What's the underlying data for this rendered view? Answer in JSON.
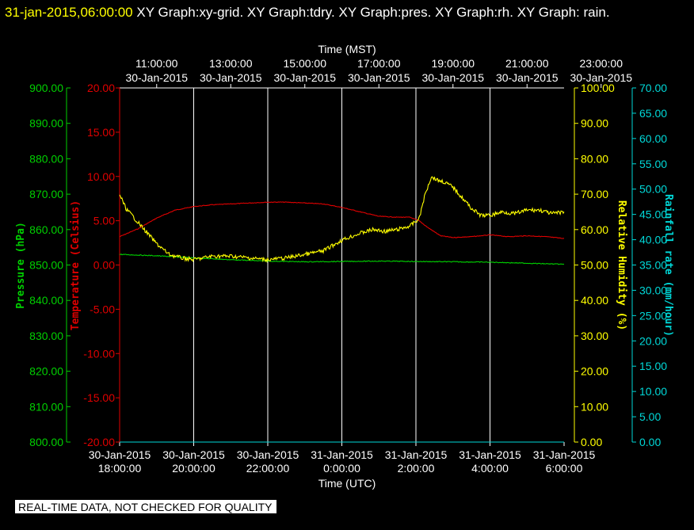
{
  "header": {
    "timestamp": "31-jan-2015,06:00:00",
    "graphs": "XY Graph:xy-grid.  XY Graph:tdry.  XY Graph:pres.  XY Graph:rh.  XY Graph: rain."
  },
  "quality_note": "REAL-TIME DATA, NOT CHECKED FOR QUALITY",
  "chart_data": {
    "type": "line",
    "grid": true,
    "colors": {
      "tdry": "#e00000",
      "pres": "#00d000",
      "rh": "#ffff00",
      "rain": "#00d8d8",
      "grid": "#ffffff"
    },
    "top_axis": {
      "label": "Time (MST)",
      "ticks": [
        {
          "time": "11:00:00",
          "date": "30-Jan-2015"
        },
        {
          "time": "13:00:00",
          "date": "30-Jan-2015"
        },
        {
          "time": "15:00:00",
          "date": "30-Jan-2015"
        },
        {
          "time": "17:00:00",
          "date": "30-Jan-2015"
        },
        {
          "time": "19:00:00",
          "date": "30-Jan-2015"
        },
        {
          "time": "21:00:00",
          "date": "30-Jan-2015"
        },
        {
          "time": "23:00:00",
          "date": "30-Jan-2015"
        }
      ]
    },
    "bottom_axis": {
      "label": "Time (UTC)",
      "xlim": [
        "2015-01-30 18:00:00",
        "2015-01-31 06:00:00"
      ],
      "ticks": [
        {
          "date": "30-Jan-2015",
          "time": "18:00:00"
        },
        {
          "date": "30-Jan-2015",
          "time": "20:00:00"
        },
        {
          "date": "30-Jan-2015",
          "time": "22:00:00"
        },
        {
          "date": "31-Jan-2015",
          "time": "0:00:00"
        },
        {
          "date": "31-Jan-2015",
          "time": "2:00:00"
        },
        {
          "date": "31-Jan-2015",
          "time": "4:00:00"
        },
        {
          "date": "31-Jan-2015",
          "time": "6:00:00"
        }
      ]
    },
    "y_axes": {
      "pressure": {
        "label": "Pressure (hPa)",
        "ylim": [
          800,
          900
        ],
        "ticks": [
          "800.00",
          "810.00",
          "820.00",
          "830.00",
          "840.00",
          "850.00",
          "860.00",
          "870.00",
          "880.00",
          "890.00",
          "900.00"
        ]
      },
      "temperature": {
        "label": "Temperature (Celsius)",
        "ylim": [
          -20,
          20
        ],
        "ticks": [
          "-20.00",
          "-15.00",
          "-10.00",
          "-5.00",
          "0.00",
          "5.00",
          "10.00",
          "15.00",
          "20.00"
        ]
      },
      "humidity": {
        "label": "Relative Humidity (%)",
        "ylim": [
          0,
          100
        ],
        "ticks": [
          "0.00",
          "10.00",
          "20.00",
          "30.00",
          "40.00",
          "50.00",
          "60.00",
          "70.00",
          "80.00",
          "90.00",
          "100.00"
        ]
      },
      "rain": {
        "label": "Rainfall rate (mm/hour)",
        "ylim": [
          0,
          70
        ],
        "ticks": [
          "0.00",
          "5.00",
          "10.00",
          "15.00",
          "20.00",
          "25.00",
          "30.00",
          "35.00",
          "40.00",
          "45.00",
          "50.00",
          "55.00",
          "60.00",
          "65.00",
          "70.00"
        ]
      }
    },
    "series": [
      {
        "key": "tdry",
        "axis": "temperature",
        "x": [
          "2015-01-30 18:00",
          "2015-01-30 18:30",
          "2015-01-30 19:00",
          "2015-01-30 19:30",
          "2015-01-30 20:00",
          "2015-01-30 20:30",
          "2015-01-30 21:00",
          "2015-01-30 21:30",
          "2015-01-30 22:00",
          "2015-01-30 22:30",
          "2015-01-30 23:00",
          "2015-01-30 23:30",
          "2015-01-31 00:00",
          "2015-01-31 00:30",
          "2015-01-31 01:00",
          "2015-01-31 01:30",
          "2015-01-31 01:50",
          "2015-01-31 02:05",
          "2015-01-31 02:20",
          "2015-01-31 02:40",
          "2015-01-31 03:00",
          "2015-01-31 03:30",
          "2015-01-31 04:00",
          "2015-01-31 04:30",
          "2015-01-31 05:00",
          "2015-01-31 05:30",
          "2015-01-31 06:00"
        ],
        "y": [
          3.2,
          4.1,
          5.3,
          6.2,
          6.6,
          6.8,
          6.9,
          7.0,
          7.1,
          7.1,
          7.0,
          6.9,
          6.5,
          6.0,
          5.5,
          5.4,
          5.4,
          5.0,
          4.2,
          3.3,
          3.1,
          3.2,
          3.4,
          3.2,
          3.3,
          3.2,
          3.0
        ]
      },
      {
        "key": "pres",
        "axis": "pressure",
        "x": [
          "2015-01-30 18:00",
          "2015-01-30 19:00",
          "2015-01-30 20:00",
          "2015-01-30 21:00",
          "2015-01-30 22:00",
          "2015-01-30 23:00",
          "2015-01-31 00:00",
          "2015-01-31 01:00",
          "2015-01-31 02:00",
          "2015-01-31 03:00",
          "2015-01-31 04:00",
          "2015-01-31 05:00",
          "2015-01-31 06:00"
        ],
        "y": [
          853.0,
          852.6,
          852.0,
          851.5,
          851.1,
          850.9,
          851.0,
          851.1,
          851.0,
          850.9,
          850.8,
          850.5,
          850.2
        ]
      },
      {
        "key": "rh",
        "axis": "humidity",
        "x": [
          "2015-01-30 18:00",
          "2015-01-30 18:10",
          "2015-01-30 18:25",
          "2015-01-30 18:40",
          "2015-01-30 19:00",
          "2015-01-30 19:20",
          "2015-01-30 19:40",
          "2015-01-30 20:00",
          "2015-01-30 20:30",
          "2015-01-30 21:00",
          "2015-01-30 21:30",
          "2015-01-30 22:00",
          "2015-01-30 22:30",
          "2015-01-30 23:00",
          "2015-01-30 23:30",
          "2015-01-31 00:00",
          "2015-01-31 00:30",
          "2015-01-31 00:50",
          "2015-01-31 01:10",
          "2015-01-31 01:30",
          "2015-01-31 01:50",
          "2015-01-31 02:05",
          "2015-01-31 02:15",
          "2015-01-31 02:25",
          "2015-01-31 02:35",
          "2015-01-31 02:45",
          "2015-01-31 03:00",
          "2015-01-31 03:15",
          "2015-01-31 03:30",
          "2015-01-31 03:45",
          "2015-01-31 04:00",
          "2015-01-31 04:20",
          "2015-01-31 04:40",
          "2015-01-31 05:00",
          "2015-01-31 05:20",
          "2015-01-31 05:40",
          "2015-01-31 06:00"
        ],
        "y": [
          70,
          66,
          63,
          60,
          56,
          53,
          52,
          51.5,
          52.5,
          52.5,
          52,
          51.5,
          52,
          53,
          54,
          57,
          59,
          60,
          59.5,
          60,
          61,
          63,
          70,
          75,
          74,
          73.5,
          72,
          69,
          66,
          64,
          64,
          65,
          64.5,
          65.5,
          65.5,
          64.5,
          65
        ]
      },
      {
        "key": "rain",
        "axis": "rain",
        "x": [
          "2015-01-30 18:00",
          "2015-01-31 06:00"
        ],
        "y": [
          0,
          0
        ]
      }
    ]
  }
}
